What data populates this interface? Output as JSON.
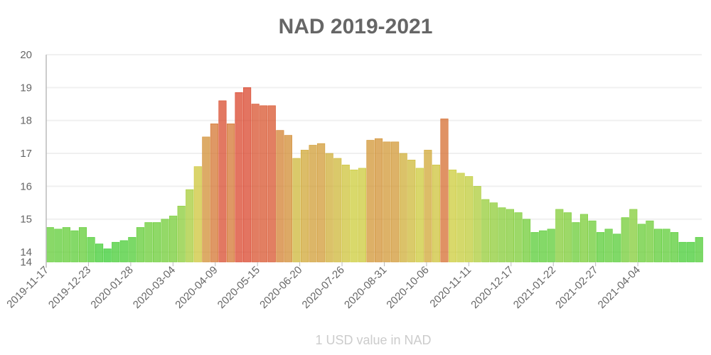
{
  "chart_data": {
    "type": "bar",
    "title": "NAD 2019-2021",
    "xlabel": "1 USD value in NAD",
    "ylabel": "",
    "ylim": [
      13.7,
      20
    ],
    "yticks": [
      20,
      19,
      18,
      17,
      16,
      15,
      14
    ],
    "ymin_label": "14",
    "xlim": [
      "2019-11-17",
      "2021-05-23"
    ],
    "xticks": [
      "2019-11-17",
      "2019-12-23",
      "2020-01-28",
      "2020-03-04",
      "2020-04-09",
      "2020-05-15",
      "2020-06-20",
      "2020-07-26",
      "2020-08-31",
      "2020-10-06",
      "2020-11-11",
      "2020-12-17",
      "2021-01-22",
      "2021-02-27",
      "2021-04-04"
    ],
    "grid": true,
    "color_scale": {
      "low": "#33cc33",
      "mid": "#cccc3a",
      "high": "#d9452c"
    },
    "x": [
      "2019-11-17",
      "2019-11-24",
      "2019-12-01",
      "2019-12-08",
      "2019-12-15",
      "2019-12-22",
      "2019-12-29",
      "2020-01-05",
      "2020-01-12",
      "2020-01-19",
      "2020-01-26",
      "2020-02-02",
      "2020-02-09",
      "2020-02-16",
      "2020-02-23",
      "2020-03-01",
      "2020-03-08",
      "2020-03-15",
      "2020-03-22",
      "2020-03-29",
      "2020-04-05",
      "2020-04-12",
      "2020-04-19",
      "2020-04-26",
      "2020-05-03",
      "2020-05-10",
      "2020-05-17",
      "2020-05-24",
      "2020-05-31",
      "2020-06-07",
      "2020-06-14",
      "2020-06-21",
      "2020-06-28",
      "2020-07-05",
      "2020-07-12",
      "2020-07-19",
      "2020-07-26",
      "2020-08-02",
      "2020-08-09",
      "2020-08-16",
      "2020-08-23",
      "2020-08-30",
      "2020-09-06",
      "2020-09-13",
      "2020-09-20",
      "2020-09-27",
      "2020-10-04",
      "2020-10-11",
      "2020-10-18",
      "2020-10-25",
      "2020-11-01",
      "2020-11-08",
      "2020-11-15",
      "2020-11-22",
      "2020-11-29",
      "2020-12-06",
      "2020-12-13",
      "2020-12-20",
      "2020-12-27",
      "2021-01-03",
      "2021-01-10",
      "2021-01-17",
      "2021-01-24",
      "2021-01-31",
      "2021-02-07",
      "2021-02-14",
      "2021-02-21",
      "2021-02-28",
      "2021-03-07",
      "2021-03-14",
      "2021-03-21",
      "2021-03-28",
      "2021-04-04",
      "2021-04-11",
      "2021-04-18",
      "2021-04-25",
      "2021-05-02",
      "2021-05-09",
      "2021-05-16",
      "2021-05-23"
    ],
    "values": [
      14.75,
      14.7,
      14.75,
      14.65,
      14.75,
      14.45,
      14.25,
      14.1,
      14.3,
      14.35,
      14.45,
      14.75,
      14.9,
      14.9,
      15.0,
      15.1,
      15.4,
      15.9,
      16.6,
      17.5,
      17.9,
      18.6,
      17.9,
      18.85,
      19.0,
      18.5,
      18.45,
      18.45,
      17.7,
      17.55,
      16.85,
      17.1,
      17.25,
      17.3,
      17.0,
      16.85,
      16.65,
      16.5,
      16.55,
      17.4,
      17.45,
      17.35,
      17.35,
      17.0,
      16.8,
      16.55,
      17.1,
      16.65,
      18.05,
      16.5,
      16.4,
      16.3,
      16.0,
      15.6,
      15.5,
      15.35,
      15.3,
      15.2,
      15.0,
      14.6,
      14.65,
      14.7,
      15.3,
      15.2,
      14.9,
      15.15,
      14.95,
      14.6,
      14.7,
      14.55,
      15.05,
      15.3,
      14.85,
      14.95,
      14.7,
      14.7,
      14.6,
      14.3,
      14.3,
      14.45
    ]
  }
}
